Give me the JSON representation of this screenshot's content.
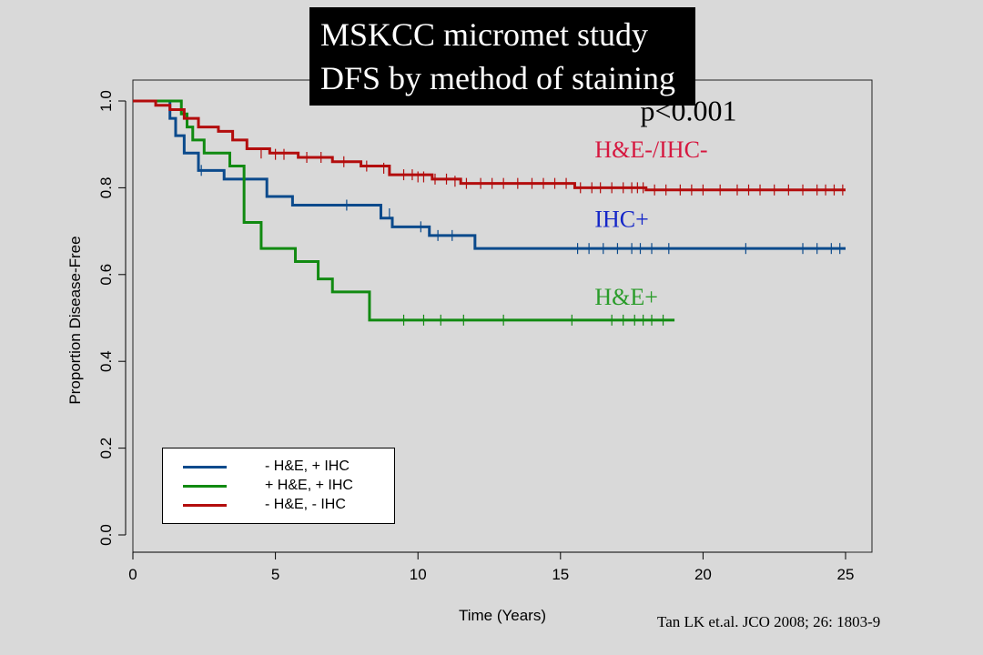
{
  "title_lines": [
    "MSKCC micromet study",
    "DFS by method of staining"
  ],
  "citation": "Tan LK et.al. JCO 2008; 26: 1803-9",
  "legend": [
    {
      "label": "- H&E, + IHC",
      "color": "#0b4a8c"
    },
    {
      "label": "+ H&E, + IHC",
      "color": "#118a11"
    },
    {
      "label": "- H&E, - IHC",
      "color": "#b30d0d"
    }
  ],
  "chart_data": {
    "type": "line",
    "subtype": "step",
    "xlabel": "Time (Years)",
    "ylabel": "Proportion Disease-Free",
    "xlim": [
      0,
      25
    ],
    "ylim": [
      0,
      1.0
    ],
    "xticks": [
      0,
      5,
      10,
      15,
      20,
      25
    ],
    "yticks": [
      0.0,
      0.2,
      0.4,
      0.6,
      0.8,
      1.0
    ],
    "grid": false,
    "legend_position": "bottom-left",
    "annotations": [
      {
        "text": "p<0.001",
        "x": 17.8,
        "y": 0.955,
        "color": "#000000"
      },
      {
        "text": "H&E-/IHC-",
        "x": 16.2,
        "y": 0.87,
        "color": "#d6173f"
      },
      {
        "text": "IHC+",
        "x": 16.2,
        "y": 0.71,
        "color": "#1426c8"
      },
      {
        "text": "H&E+",
        "x": 16.2,
        "y": 0.53,
        "color": "#2a9c2a"
      }
    ],
    "series": [
      {
        "name": "- H&E, + IHC",
        "color": "#0b4a8c",
        "x": [
          0,
          1.3,
          1.5,
          1.8,
          2.3,
          3.2,
          4.7,
          5.6,
          8.7,
          9.1,
          10.4,
          12.0,
          25.0
        ],
        "y": [
          1.0,
          0.96,
          0.92,
          0.88,
          0.84,
          0.82,
          0.78,
          0.76,
          0.73,
          0.71,
          0.69,
          0.66,
          0.66
        ],
        "censor_x": [
          2.4,
          7.5,
          8.7,
          9.0,
          10.1,
          10.7,
          11.2,
          15.6,
          16.0,
          16.5,
          17.0,
          17.5,
          17.8,
          18.2,
          18.8,
          21.5,
          23.5,
          24.0,
          24.5,
          24.8
        ],
        "censor_y": [
          0.84,
          0.76,
          0.74,
          0.74,
          0.71,
          0.69,
          0.69,
          0.66,
          0.66,
          0.66,
          0.66,
          0.66,
          0.66,
          0.66,
          0.66,
          0.66,
          0.66,
          0.66,
          0.66,
          0.66
        ]
      },
      {
        "name": "+ H&E, + IHC",
        "color": "#118a11",
        "x": [
          0,
          1.7,
          1.9,
          2.1,
          2.5,
          3.4,
          3.9,
          4.5,
          5.7,
          6.5,
          7.0,
          8.3,
          19.0
        ],
        "y": [
          1.0,
          0.97,
          0.94,
          0.91,
          0.88,
          0.85,
          0.72,
          0.66,
          0.63,
          0.59,
          0.56,
          0.495,
          0.495
        ],
        "censor_x": [
          9.5,
          10.2,
          10.8,
          11.6,
          13.0,
          15.4,
          16.8,
          17.2,
          17.6,
          17.9,
          18.2,
          18.6
        ],
        "censor_y": [
          0.495,
          0.495,
          0.495,
          0.495,
          0.495,
          0.495,
          0.495,
          0.495,
          0.495,
          0.495,
          0.495,
          0.495
        ]
      },
      {
        "name": "- H&E, - IHC",
        "color": "#b30d0d",
        "x": [
          0,
          0.8,
          1.3,
          1.8,
          2.3,
          3.0,
          3.5,
          4.0,
          4.8,
          5.8,
          7.0,
          8.0,
          9.0,
          10.5,
          11.5,
          15.5,
          18.0,
          25.0
        ],
        "y": [
          1.0,
          0.99,
          0.98,
          0.96,
          0.94,
          0.93,
          0.91,
          0.89,
          0.88,
          0.87,
          0.86,
          0.85,
          0.83,
          0.82,
          0.81,
          0.8,
          0.795,
          0.795
        ],
        "censor_x": [
          4.5,
          5.0,
          5.3,
          6.1,
          6.6,
          7.4,
          8.2,
          8.8,
          9.5,
          9.8,
          10.0,
          10.2,
          10.6,
          11.0,
          11.3,
          11.7,
          12.2,
          12.6,
          13.0,
          13.5,
          14.0,
          14.4,
          14.8,
          15.2,
          15.7,
          16.1,
          16.4,
          16.8,
          17.2,
          17.5,
          17.7,
          17.9,
          18.3,
          18.7,
          19.2,
          19.6,
          20.0,
          20.6,
          21.2,
          21.6,
          22.0,
          22.5,
          23.0,
          23.5,
          24.0,
          24.3,
          24.6,
          24.9
        ],
        "censor_y": [
          0.88,
          0.877,
          0.877,
          0.87,
          0.87,
          0.86,
          0.85,
          0.845,
          0.83,
          0.83,
          0.825,
          0.825,
          0.82,
          0.82,
          0.815,
          0.81,
          0.81,
          0.81,
          0.81,
          0.81,
          0.81,
          0.81,
          0.81,
          0.81,
          0.8,
          0.8,
          0.8,
          0.8,
          0.8,
          0.8,
          0.8,
          0.8,
          0.795,
          0.795,
          0.795,
          0.795,
          0.795,
          0.795,
          0.795,
          0.795,
          0.795,
          0.795,
          0.795,
          0.795,
          0.795,
          0.795,
          0.795,
          0.795
        ]
      }
    ]
  }
}
